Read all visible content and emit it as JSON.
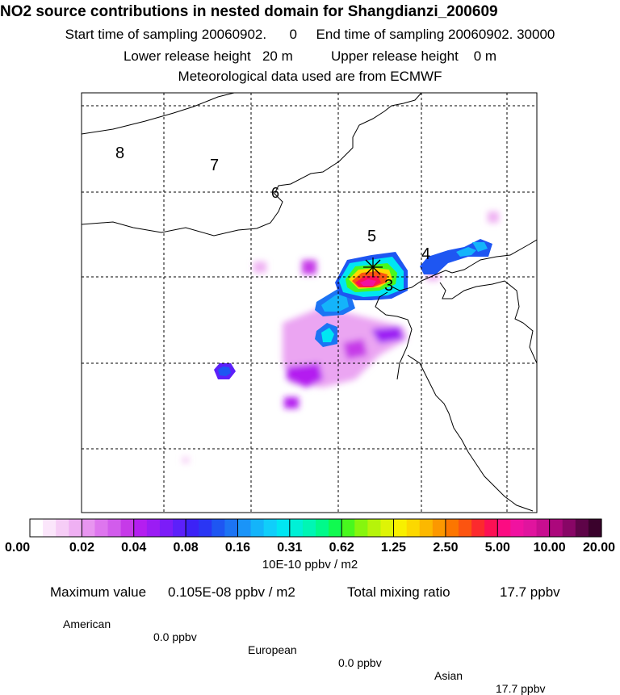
{
  "header": {
    "title": "NO2 source contributions in nested domain for Shangdianzi_200609",
    "start_label": "Start time of sampling",
    "start_value": "20060902.      0",
    "end_label": "End time of sampling",
    "end_value": "20060902. 30000",
    "lower_label": "Lower release height",
    "lower_value": "20 m",
    "upper_label": "Upper release height",
    "upper_value": "0 m",
    "met_text": "Meteorological data used are from ECMWF"
  },
  "chart_data": {
    "type": "heatmap",
    "map": {
      "region_labels": [
        "8",
        "7",
        "6",
        "5",
        "4",
        "3"
      ],
      "receptor_marker": "asterisk",
      "gridlines": true
    },
    "plumes": [
      {
        "label": "core",
        "level": 3,
        "cx": 0.62,
        "cy": 0.42
      },
      {
        "label": "west-blob",
        "level": 2,
        "cx": 0.31,
        "cy": 0.66
      },
      {
        "label": "northeast",
        "level": 2,
        "cx": 0.88,
        "cy": 0.37
      }
    ],
    "colorbar": {
      "tick_labels": [
        "0.00",
        "0.02",
        "0.04",
        "0.08",
        "0.16",
        "0.31",
        "0.62",
        "1.25",
        "2.50",
        "5.00",
        "10.00",
        "20.00"
      ],
      "colors": [
        "#ffffff",
        "#fbe6fb",
        "#f6cdf6",
        "#efb0f3",
        "#e895f0",
        "#de76ee",
        "#d25cec",
        "#c63ae8",
        "#b41ef0",
        "#9b1cf4",
        "#7c1cf8",
        "#5c20fa",
        "#3c22f6",
        "#2a36f4",
        "#1e56f2",
        "#1c74f4",
        "#1a94f8",
        "#14b4fa",
        "#10cefa",
        "#00e6f2",
        "#00f0d6",
        "#00f6b4",
        "#00fa8a",
        "#10fa50",
        "#48f81e",
        "#86f60e",
        "#b6f40a",
        "#def406",
        "#f8f000",
        "#fcd800",
        "#fcb800",
        "#fc9800",
        "#fc7600",
        "#fc5410",
        "#fc2a2e",
        "#fc1054",
        "#fc0c82",
        "#f012a0",
        "#e0149e",
        "#c80e90",
        "#ac087c",
        "#880666",
        "#5e0448",
        "#3a022c"
      ],
      "units": "10E-10 ppbv / m2"
    }
  },
  "footer": {
    "max_label": "Maximum value",
    "max_value": "0.105E-08 ppbv / m2",
    "total_label": "Total mixing ratio",
    "total_value": "17.7 ppbv",
    "american_label": "American",
    "american_value": "0.0 ppbv",
    "european_label": "European",
    "european_value": "0.0 ppbv",
    "asian_label": "Asian",
    "asian_value": "17.7 ppbv"
  }
}
